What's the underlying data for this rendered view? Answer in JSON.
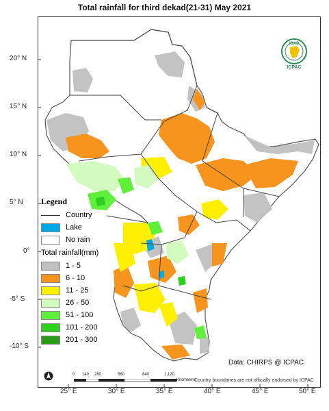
{
  "title": "Total rainfall for  third  dekad(21-31)  May 2021",
  "lat_labels": [
    "20° N",
    "15° N",
    "10° N",
    "5° N",
    "0°",
    "-5° S",
    "-10° S"
  ],
  "lon_labels": [
    "25° E",
    "30° E",
    "35° E",
    "40° E",
    "45° E",
    "50° E"
  ],
  "legend": {
    "heading": "Legend",
    "country": "Country",
    "lake": "Lake",
    "no_rain": "No rain",
    "classes_title": "Total rainfall(mm)",
    "classes": [
      {
        "label": "1 - 5",
        "color": "#c0c0c0"
      },
      {
        "label": "6 - 10",
        "color": "#f7941d"
      },
      {
        "label": "11 - 25",
        "color": "#ffef00"
      },
      {
        "label": "26 - 50",
        "color": "#d3fbc0"
      },
      {
        "label": "51 - 100",
        "color": "#5ef03a"
      },
      {
        "label": "101 - 200",
        "color": "#2fcf1f"
      },
      {
        "label": "201 - 300",
        "color": "#2a9a18"
      }
    ],
    "lake_color": "#00a8e6",
    "country_line_color": "#444444"
  },
  "credit": "Data: CHIRPS @ ICPAC",
  "disclaimer": "Country boundaries are not officially endorsed by ICPAC",
  "scale": {
    "labels": [
      "0",
      "140",
      "280",
      "560",
      "840",
      "1,120"
    ],
    "unit": "Kilometers"
  },
  "logo": {
    "top": "IGAD",
    "bottom": "ICPAC"
  }
}
